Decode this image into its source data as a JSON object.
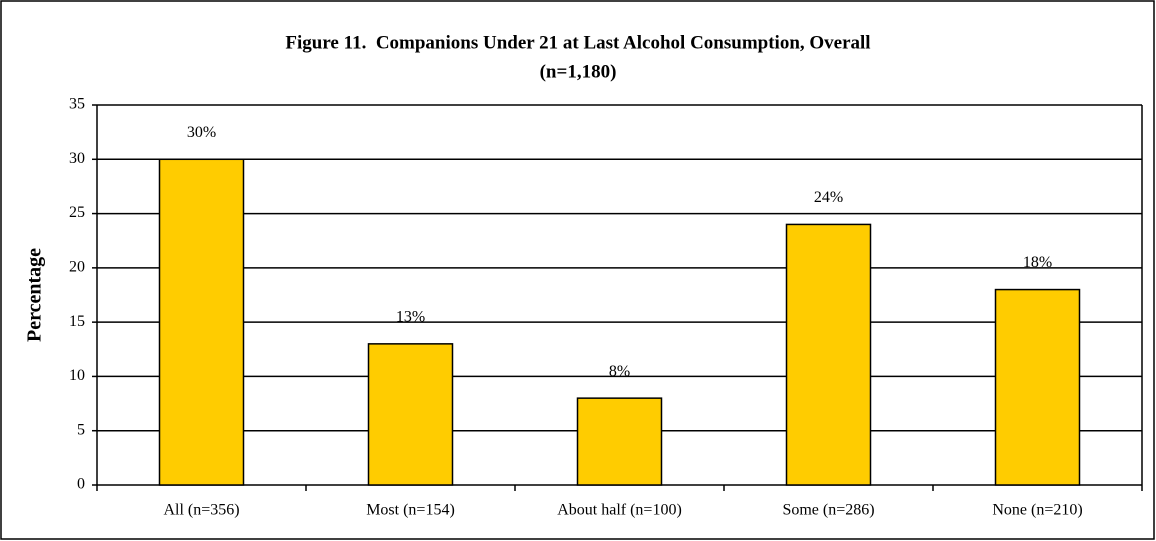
{
  "chart_data": {
    "type": "bar",
    "title": "Figure 11.  Companions Under 21 at Last Alcohol Consumption, Overall",
    "subtitle": "(n=1,180)",
    "y_label": "Percentage",
    "categories": [
      "All (n=356)",
      "Most (n=154)",
      "About half (n=100)",
      "Some (n=286)",
      "None (n=210)"
    ],
    "values": [
      30,
      13,
      8,
      24,
      18
    ],
    "value_labels": [
      "30%",
      "13%",
      "8%",
      "24%",
      "18%"
    ],
    "color": "#ffcc00",
    "ylim": [
      0,
      35
    ],
    "yticks": [
      0,
      5,
      10,
      15,
      20,
      25,
      30,
      35
    ],
    "grid": true
  }
}
